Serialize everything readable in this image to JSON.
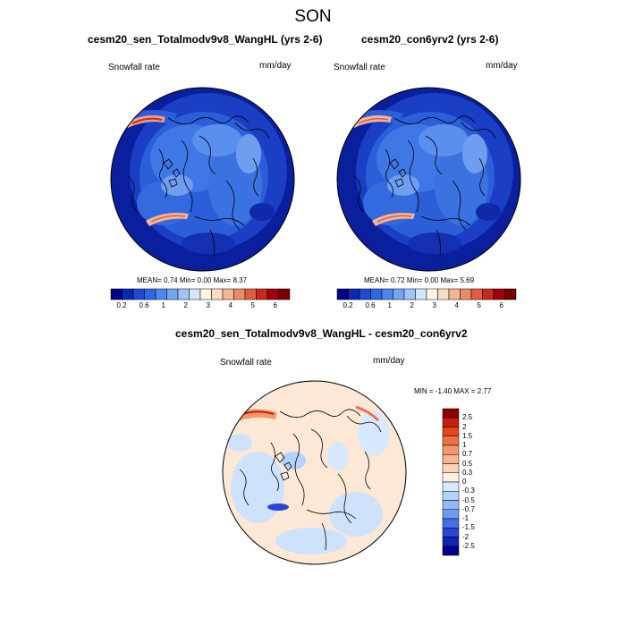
{
  "figure": {
    "season": "SON"
  },
  "panels": [
    {
      "title": "cesm20_sen_Totalmodv9v8_WangHL (yrs 2-6)",
      "variable": "Snowfall rate",
      "units": "mm/day",
      "stats": {
        "mean_label": "MEAN=",
        "mean": "0.74",
        "min_label": "Min=",
        "min": "0.00",
        "max_label": "Max=",
        "max": "8.37"
      }
    },
    {
      "title": "cesm20_con6yrv2 (yrs 2-6)",
      "variable": "Snowfall rate",
      "units": "mm/day",
      "stats": {
        "mean_label": "MEAN=",
        "mean": "0.72",
        "min_label": "Min=",
        "min": "0.00",
        "max_label": "Max=",
        "max": "5.69"
      }
    }
  ],
  "diff_panel": {
    "title": "cesm20_sen_Totalmodv9v8_WangHL - cesm20_con6yrv2",
    "variable": "Snowfall rate",
    "units": "mm/day",
    "minmax_text": "MIN =  -1.40 MAX =   2.77"
  },
  "colorbar_abs": {
    "ticks": [
      "0.2",
      "0.6",
      "1",
      "2",
      "3",
      "4",
      "5",
      "6"
    ],
    "colors": [
      "#00008b",
      "#0a28b4",
      "#1e4bd2",
      "#2d69e6",
      "#4b87f0",
      "#73a5f5",
      "#a0c3fa",
      "#d2e6ff",
      "#fff5e6",
      "#fadcc3",
      "#f5b496",
      "#eb8c69",
      "#e15a41",
      "#c8281e",
      "#a0000a",
      "#780000"
    ]
  },
  "colorbar_diff": {
    "ticks": [
      "2.5",
      "2",
      "1.5",
      "1",
      "0.7",
      "0.5",
      "0.3",
      "0",
      "-0.3",
      "-0.5",
      "-0.7",
      "-1",
      "-1.5",
      "-2",
      "-2.5"
    ],
    "colors": [
      "#8b0000",
      "#c81e0a",
      "#e6461e",
      "#f06e46",
      "#f5966e",
      "#fab496",
      "#fcd2b9",
      "#fff0e1",
      "#d7e9ff",
      "#b4d2fa",
      "#91b9f5",
      "#6e9bf0",
      "#466ee6",
      "#2846d2",
      "#1423b4",
      "#00008b"
    ]
  },
  "colors": {
    "ocean_deep": "#0a1f9e",
    "snow_mid": "#2b5fd9",
    "snow_light": "#6f9ef0",
    "diff_neutral": "#fde8d6",
    "diff_light_blue": "#cfe2fb",
    "coast": "#000000"
  }
}
